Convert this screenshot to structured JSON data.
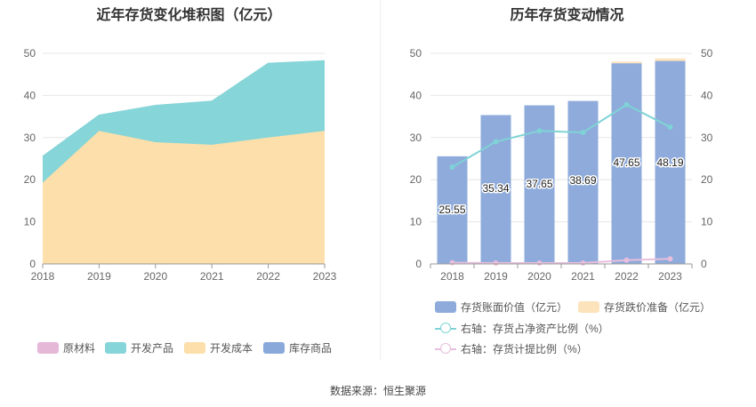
{
  "left_title": "近年存货变化堆积图（亿元）",
  "right_title": "历年存货变动情况",
  "source": "数据来源：恒生聚源",
  "chart_data": [
    {
      "type": "area",
      "stacked": true,
      "title": "近年存货变化堆积图（亿元）",
      "categories": [
        "2018",
        "2019",
        "2020",
        "2021",
        "2022",
        "2023"
      ],
      "ylim": [
        0,
        50
      ],
      "yticks": [
        0,
        10,
        20,
        30,
        40,
        50
      ],
      "series": [
        {
          "name": "原材料",
          "color": "#e6b8d8",
          "values": [
            0,
            0,
            0,
            0,
            0,
            0
          ]
        },
        {
          "name": "开发产品",
          "color": "#86d5d9",
          "values": [
            6.2,
            3.7,
            8.7,
            10.3,
            17.6,
            16.6
          ]
        },
        {
          "name": "开发成本",
          "color": "#fcdfaa",
          "values": [
            19.3,
            31.6,
            28.9,
            28.3,
            30.0,
            31.6
          ]
        },
        {
          "name": "库存商品",
          "color": "#8aa9db",
          "values": [
            0,
            0,
            0,
            0,
            0,
            0
          ]
        }
      ],
      "legend_position": "bottom",
      "grid": true
    },
    {
      "type": "bar",
      "title": "历年存货变动情况",
      "categories": [
        "2018",
        "2019",
        "2020",
        "2021",
        "2022",
        "2023"
      ],
      "ylim": [
        0,
        50
      ],
      "yticks": [
        0,
        10,
        20,
        30,
        40,
        50
      ],
      "y2lim": [
        0,
        50
      ],
      "y2ticks": [
        0,
        10,
        20,
        30,
        40,
        50
      ],
      "series": [
        {
          "name": "存货账面价值（亿元）",
          "color": "#8eabdb",
          "values": [
            25.55,
            35.34,
            37.65,
            38.69,
            47.65,
            48.19
          ],
          "labels": [
            "25.55",
            "35.34",
            "37.65",
            "38.69",
            "47.65",
            "48.19"
          ]
        },
        {
          "name": "存货跌价准备（亿元）",
          "color": "#fde3bb",
          "values": [
            0,
            0,
            0,
            0,
            0.4,
            0.6
          ]
        },
        {
          "name": "右轴：存货占净资产比例（%）",
          "type": "line",
          "axis": "right",
          "color": "#7fd3d6",
          "values": [
            23.0,
            29.0,
            31.6,
            31.2,
            37.8,
            32.5
          ]
        },
        {
          "name": "右轴：存货计提比例（%）",
          "type": "line",
          "axis": "right",
          "color": "#e8bedd",
          "values": [
            0.3,
            0.2,
            0.2,
            0.2,
            0.9,
            1.2
          ]
        }
      ],
      "legend_position": "bottom",
      "grid": true
    }
  ]
}
